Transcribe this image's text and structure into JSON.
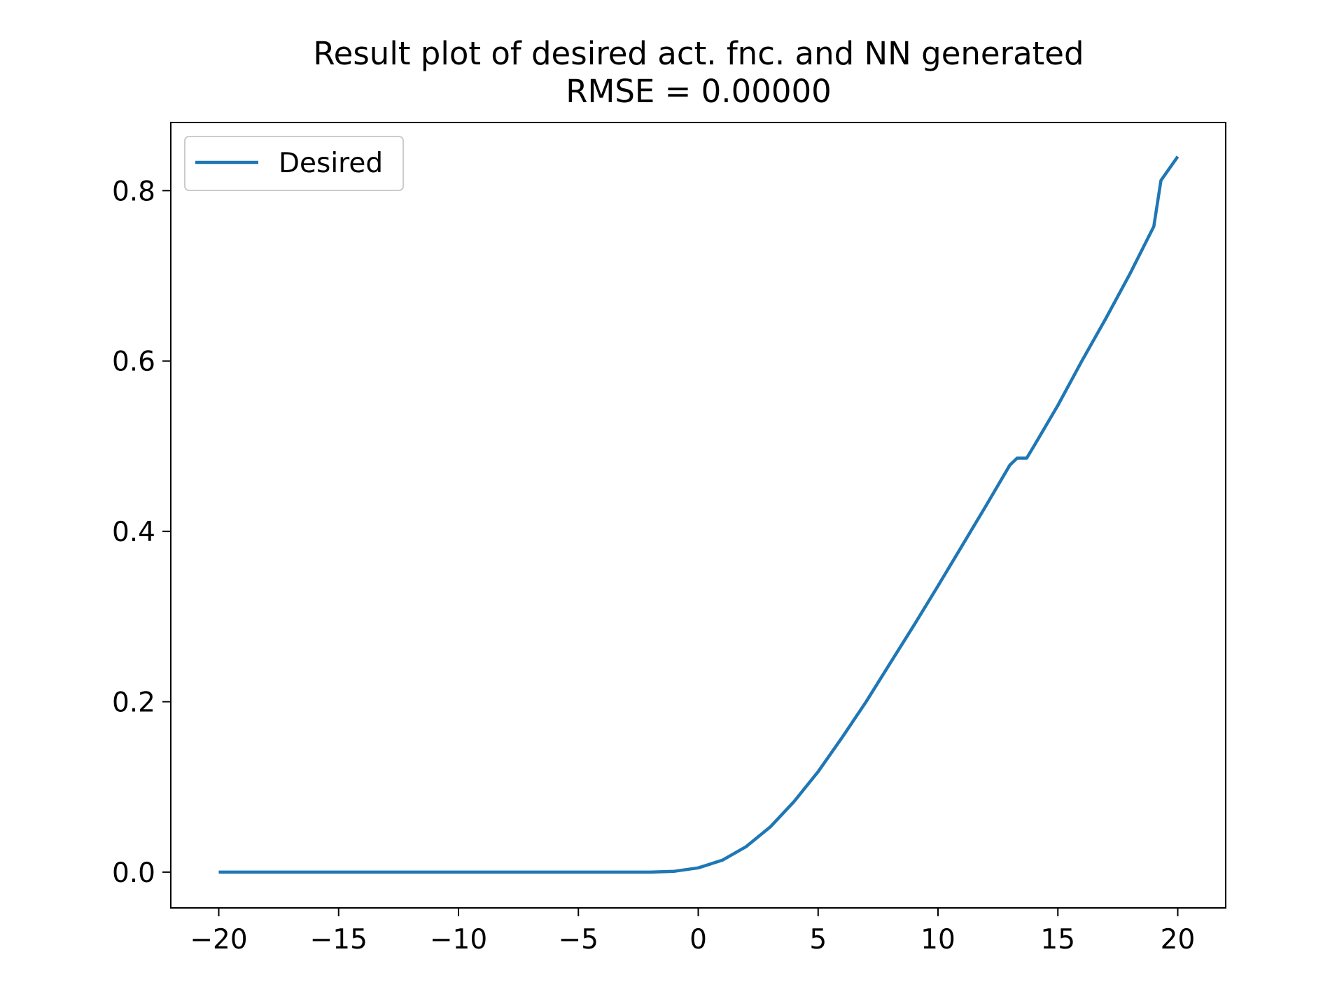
{
  "chart_data": {
    "type": "line",
    "title": "Result plot of desired act. fnc. and NN generated",
    "subtitle": "RMSE = 0.00000",
    "xlabel": "",
    "ylabel": "",
    "xlim": [
      -22,
      22
    ],
    "ylim": [
      -0.042,
      0.88
    ],
    "xticks": [
      -20,
      -15,
      -10,
      -5,
      0,
      5,
      10,
      15,
      20
    ],
    "xtick_labels": [
      "−20",
      "−15",
      "−10",
      "−5",
      "0",
      "5",
      "10",
      "15",
      "20"
    ],
    "yticks": [
      0.0,
      0.2,
      0.4,
      0.6,
      0.8
    ],
    "ytick_labels": [
      "0.0",
      "0.2",
      "0.4",
      "0.6",
      "0.8"
    ],
    "grid": false,
    "legend_position": "upper-left",
    "series": [
      {
        "name": "Desired",
        "color": "#1f77b4",
        "x": [
          -20,
          -15,
          -10,
          -5,
          -2,
          -1,
          0,
          1,
          2,
          3,
          4,
          5,
          6,
          7,
          8,
          9,
          10,
          11,
          12,
          13,
          13.3,
          13.7,
          14,
          15,
          16,
          17,
          18,
          19,
          19.3,
          20
        ],
        "y": [
          0.0,
          0.0,
          0.0,
          0.0,
          0.0,
          0.001,
          0.005,
          0.014,
          0.03,
          0.053,
          0.083,
          0.118,
          0.158,
          0.2,
          0.245,
          0.29,
          0.336,
          0.383,
          0.43,
          0.478,
          0.486,
          0.486,
          0.5,
          0.548,
          0.6,
          0.65,
          0.702,
          0.758,
          0.812,
          0.84
        ]
      }
    ]
  }
}
